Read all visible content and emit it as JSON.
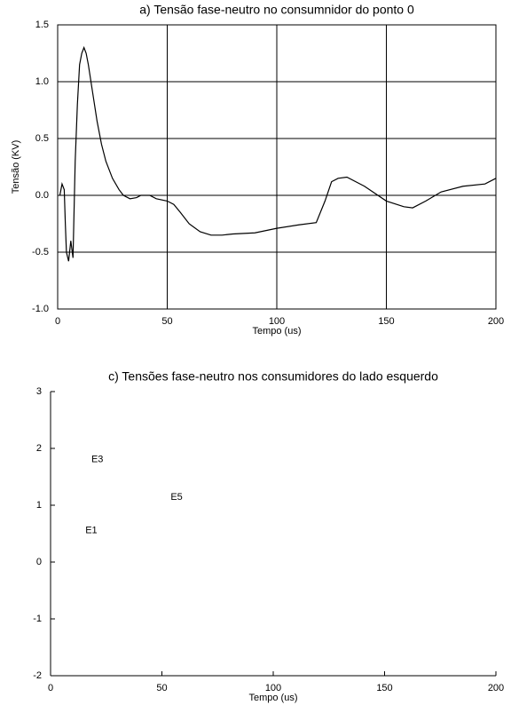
{
  "chart_data": [
    {
      "type": "line",
      "title": "a) Tensão fase-neutro no consumnidor do ponto 0",
      "x_label": "Tempo (us)",
      "y_label": "Tensão (KV)",
      "xlim": [
        0,
        200
      ],
      "ylim": [
        -1,
        1.5
      ],
      "xticks": [
        0,
        50,
        100,
        150,
        200
      ],
      "yticks": [
        {
          "value": -1,
          "label": "-1.0"
        },
        -0.5,
        {
          "value": 0,
          "label": "0.0"
        },
        0.5,
        {
          "value": 1,
          "label": "1.0"
        },
        1.5
      ],
      "grid": true,
      "box": true,
      "x": [
        1,
        2,
        3,
        3.5,
        4,
        5,
        6,
        7,
        8,
        9,
        10,
        11,
        12,
        13,
        14,
        16,
        18,
        20,
        22,
        25,
        28,
        30,
        33,
        36,
        38,
        42,
        45,
        50,
        53,
        56,
        60,
        65,
        70,
        75,
        80,
        90,
        100,
        110,
        118,
        122,
        125,
        128,
        132,
        140,
        150,
        158,
        162,
        168,
        175,
        185,
        195,
        200
      ],
      "series": [
        {
          "color": "#000000",
          "values": [
            0.0,
            0.1,
            0.05,
            -0.25,
            -0.5,
            -0.58,
            -0.4,
            -0.55,
            0.3,
            0.8,
            1.15,
            1.25,
            1.3,
            1.25,
            1.15,
            0.9,
            0.65,
            0.45,
            0.3,
            0.15,
            0.05,
            0.0,
            -0.03,
            -0.02,
            0.0,
            0.0,
            -0.03,
            -0.05,
            -0.08,
            -0.15,
            -0.25,
            -0.32,
            -0.35,
            -0.35,
            -0.34,
            -0.33,
            -0.29,
            -0.26,
            -0.24,
            -0.05,
            0.12,
            0.15,
            0.16,
            0.08,
            -0.05,
            -0.1,
            -0.11,
            -0.05,
            0.03,
            0.08,
            0.1,
            0.15
          ]
        }
      ]
    },
    {
      "type": "line",
      "title": "c) Tensões fase-neutro nos consumidores do lado esquerdo",
      "x_label": "Tempo (us)",
      "xlim": [
        0,
        200
      ],
      "ylim": [
        -2,
        3
      ],
      "xticks": [
        0,
        50,
        100,
        150,
        200
      ],
      "yticks": [
        -2,
        -1,
        0,
        1,
        2,
        3
      ],
      "grid": false,
      "box": false,
      "annotations": [
        {
          "text": "E3",
          "x": 21,
          "y": 1.8
        },
        {
          "text": "E5",
          "x": 56.6,
          "y": 1.14
        },
        {
          "text": "E1",
          "x": 18.3,
          "y": 0.55
        }
      ]
    }
  ]
}
